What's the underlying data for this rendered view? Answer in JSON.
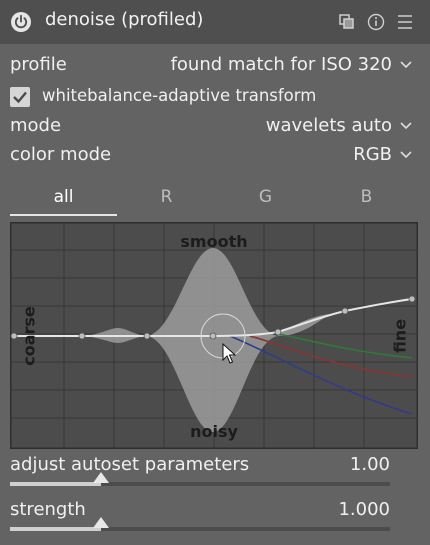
{
  "header": {
    "title": "denoise (profiled)",
    "icons": [
      "power-icon",
      "presets-icon",
      "reset-icon",
      "menu-icon"
    ]
  },
  "profile": {
    "label": "profile",
    "value": "found match for ISO 320"
  },
  "whitebalance": {
    "label": "whitebalance-adaptive transform",
    "checked": true
  },
  "mode": {
    "label": "mode",
    "value": "wavelets auto"
  },
  "color_mode": {
    "label": "color mode",
    "value": "RGB"
  },
  "tabs": [
    {
      "label": "all",
      "active": true
    },
    {
      "label": "R",
      "active": false
    },
    {
      "label": "G",
      "active": false
    },
    {
      "label": "B",
      "active": false
    }
  ],
  "graph": {
    "labels": {
      "top": "smooth",
      "bottom": "noisy",
      "left": "coarse",
      "right": "fine"
    },
    "colors": {
      "background": "#4c4c4c",
      "grid": "#333333",
      "curve": "#e6e6e6",
      "envelope": "#9c9c9c",
      "green": "#2f7a36",
      "red": "#8a3434",
      "blue": "#323a8c"
    }
  },
  "sliders": {
    "adjust_autoset": {
      "label": "adjust autoset parameters",
      "value": "1.00",
      "fraction": 0.24
    },
    "strength": {
      "label": "strength",
      "value": "1.000",
      "fraction": 0.24
    }
  }
}
